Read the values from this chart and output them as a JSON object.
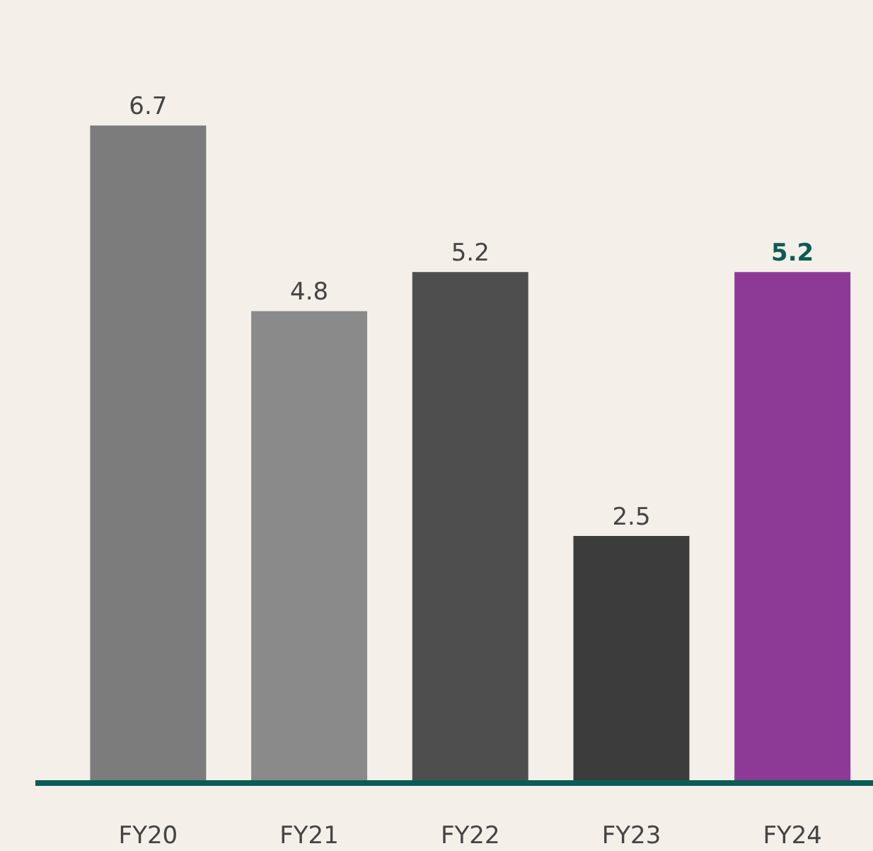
{
  "chart_data": {
    "type": "bar",
    "categories": [
      "FY20",
      "FY21",
      "FY22",
      "FY23",
      "FY24"
    ],
    "values": [
      6.7,
      4.8,
      5.2,
      2.5,
      5.2
    ],
    "colors": [
      "#7c7c7c",
      "#8a8a8a",
      "#4e4e4e",
      "#3c3c3c",
      "#8c3a96"
    ],
    "data_labels": true,
    "grid": false,
    "legend": false
  }
}
